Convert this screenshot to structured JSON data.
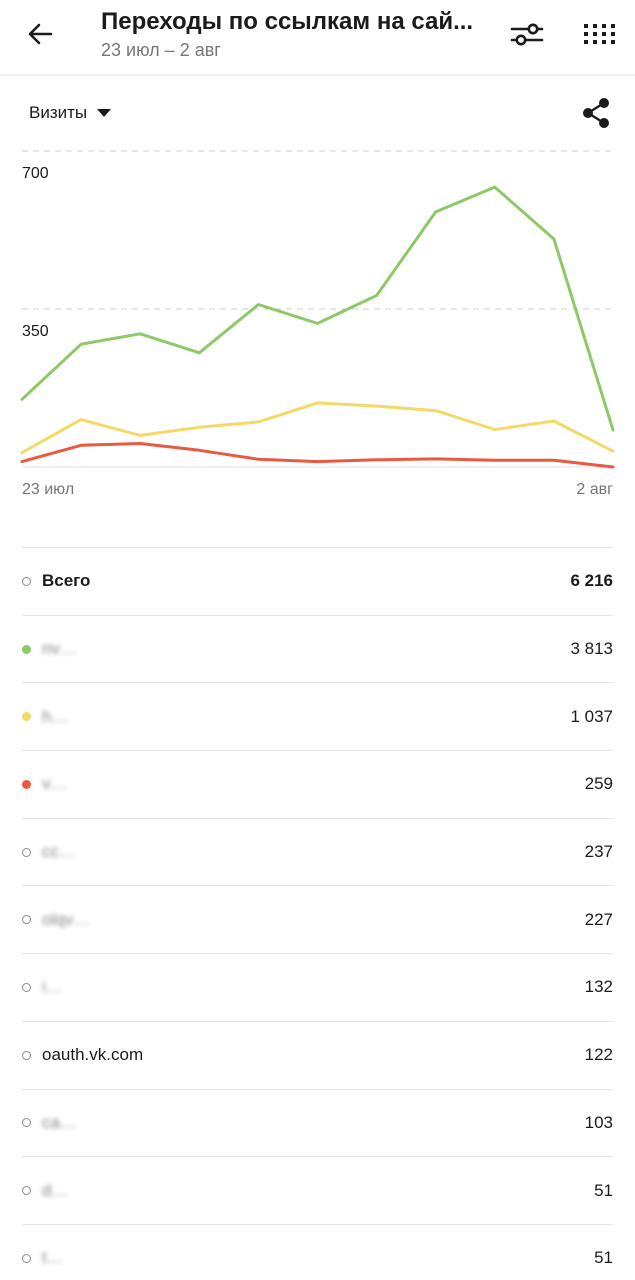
{
  "header": {
    "title": "Переходы по ссылкам на сай...",
    "subtitle": "23 июл – 2 авг",
    "icons": {
      "back": "arrow-back-icon",
      "filter": "sliders-icon",
      "apps": "grid-icon",
      "share": "share-icon"
    }
  },
  "metric_selector": {
    "label": "Визиты"
  },
  "chart_data": {
    "type": "line",
    "x": [
      "23 июл",
      "24 июл",
      "25 июл",
      "26 июл",
      "27 июл",
      "28 июл",
      "29 июл",
      "30 июл",
      "31 июл",
      "1 авг",
      "2 авг"
    ],
    "x_tick_labels": [
      "23 июл",
      "2 авг"
    ],
    "y_tick_labels": [
      "700",
      "350"
    ],
    "ylim": [
      0,
      700
    ],
    "grid": "dashed horizontal",
    "series": [
      {
        "color": "#8dc966",
        "values": [
          150,
          272,
          295,
          253,
          360,
          318,
          380,
          565,
          620,
          505,
          82
        ]
      },
      {
        "color": "#f5d966",
        "values": [
          32,
          105,
          70,
          88,
          100,
          142,
          135,
          125,
          83,
          102,
          35
        ]
      },
      {
        "color": "#e85a40",
        "values": [
          12,
          48,
          52,
          37,
          17,
          12,
          16,
          18,
          15,
          15,
          0
        ]
      }
    ]
  },
  "rows": [
    {
      "name": "Всего",
      "value": "6 216",
      "color": "hollow",
      "bold": true
    },
    {
      "name": "nv…",
      "value": "3 813",
      "color": "#8dc966",
      "blurred": true
    },
    {
      "name": "h…",
      "value": "1 037",
      "color": "#f5d966",
      "blurred": true
    },
    {
      "name": "v…",
      "value": "259",
      "color": "#e85a40",
      "blurred": true
    },
    {
      "name": "cc…",
      "value": "237",
      "color": "hollow",
      "blurred": true
    },
    {
      "name": "olqv…",
      "value": "227",
      "color": "hollow",
      "blurred": true
    },
    {
      "name": "i…",
      "value": "132",
      "color": "hollow",
      "blurred": true
    },
    {
      "name": "oauth.vk.com",
      "value": "122",
      "color": "hollow"
    },
    {
      "name": "ca…",
      "value": "103",
      "color": "hollow",
      "blurred": true
    },
    {
      "name": "d…",
      "value": "51",
      "color": "hollow",
      "blurred": true
    },
    {
      "name": "t…",
      "value": "51",
      "color": "hollow",
      "blurred": true
    }
  ]
}
